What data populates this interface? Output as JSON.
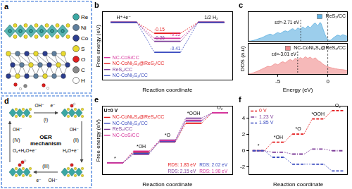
{
  "diagrams": [
    {
      "label": "a",
      "legend": [
        {
          "name": "Re",
          "color": "#3aa7a3"
        },
        {
          "name": "Ni",
          "color": "#5f7f9e"
        },
        {
          "name": "Co",
          "color": "#2c3e8f"
        },
        {
          "name": "S",
          "color": "#e8d92e"
        },
        {
          "name": "O",
          "color": "#e02020"
        },
        {
          "name": "C",
          "color": "#8a8a8a"
        },
        {
          "name": "H",
          "color": "#ffffff"
        }
      ]
    },
    {
      "label": "d",
      "title": "OER mechanism",
      "steps": [
        {
          "label": "(I)",
          "in": "OH⁻",
          "out": "e⁻"
        },
        {
          "label": "(II)",
          "in": "OH⁻",
          "out": "H₂O+e⁻"
        },
        {
          "label": "(III)",
          "in": "OH⁻",
          "out": "e⁻"
        },
        {
          "label": "(IV)",
          "in": "OH⁻",
          "out": "O₂+H₂O+e⁻"
        }
      ]
    }
  ],
  "chart_data": [
    {
      "type": "levels",
      "title": "b",
      "xlabel": "Reaction coordinate",
      "ylabel": "Free energy (eV)",
      "categories": [
        "H⁺+e⁻",
        null,
        "1/2 H₂"
      ],
      "series": [
        {
          "name": "NC-CoS/CC",
          "color": "#d6339b",
          "values": [
            0,
            -0.22,
            0
          ],
          "value_labels": [
            null,
            "-0.22",
            null
          ]
        },
        {
          "name": "NC-CoNi₂S₄@ReS₂/CC",
          "color": "#e41a1c",
          "values": [
            0,
            -0.15,
            0
          ],
          "value_labels": [
            null,
            "-0.15",
            null
          ]
        },
        {
          "name": "ReS₂/CC",
          "color": "#7d3c98",
          "values": [
            0,
            -0.26,
            0
          ],
          "value_labels": [
            null,
            "-0.26",
            null
          ]
        },
        {
          "name": "NC-CoNi₂S₄/CC",
          "color": "#3b4cc0",
          "values": [
            0,
            -0.41,
            0
          ],
          "value_labels": [
            null,
            "-0.41",
            null
          ]
        }
      ],
      "ylim": [
        -0.8,
        0.15
      ],
      "yticks": [],
      "tick_labels": false,
      "grid": false,
      "legend": "bottom-left",
      "data_labels": true
    },
    {
      "type": "area",
      "title": "c",
      "x": [
        -8,
        -7.75,
        -7.5,
        -7.25,
        -7,
        -6.75,
        -6.5,
        -6.25,
        -6,
        -5.75,
        -5.5,
        -5.25,
        -5,
        -4.75,
        -4.5,
        -4.25,
        -4,
        -3.75,
        -3.5,
        -3.25,
        -3,
        -2.75,
        -2.5,
        -2.25,
        -2,
        -1.75,
        -1.5,
        -1.25,
        -1,
        -0.75,
        -0.5,
        -0.25,
        0,
        0.25,
        0.5,
        0.75,
        1,
        1.25,
        1.5,
        1.75,
        2
      ],
      "series": [
        {
          "name": "ReS₂/CC",
          "color": "#5aaee0",
          "values": [
            0.2,
            0.3,
            0.5,
            0.8,
            1.2,
            1.6,
            2.0,
            2.6,
            3.1,
            3.5,
            3.0,
            3.6,
            4.2,
            3.8,
            4.5,
            5.0,
            4.6,
            5.4,
            6.0,
            5.2,
            6.3,
            5.8,
            6.8,
            6.0,
            7.2,
            6.5,
            7.8,
            8.6,
            7.4,
            8.9,
            6.2,
            3.0,
            1.0,
            0.6,
            1.5,
            2.4,
            3.0,
            2.6,
            3.2,
            2.8,
            2.5
          ]
        }
      ],
      "xlim": [
        -8,
        2
      ],
      "xticks": [
        -5,
        0
      ],
      "ylim": [
        0,
        14
      ],
      "yticks": [],
      "tick_labels": false,
      "grid": false,
      "legend": "top-right",
      "annotations": [
        {
          "text": "εd=-2.71 eV",
          "x": -2.71
        }
      ],
      "vlines": [
        0
      ]
    },
    {
      "type": "area",
      "xlabel": "Energy (eV)",
      "ylabel": "DOS (a.u)",
      "x": [
        -8,
        -7.75,
        -7.5,
        -7.25,
        -7,
        -6.75,
        -6.5,
        -6.25,
        -6,
        -5.75,
        -5.5,
        -5.25,
        -5,
        -4.75,
        -4.5,
        -4.25,
        -4,
        -3.75,
        -3.5,
        -3.25,
        -3,
        -2.75,
        -2.5,
        -2.25,
        -2,
        -1.75,
        -1.5,
        -1.25,
        -1,
        -0.75,
        -0.5,
        -0.25,
        0,
        0.25,
        0.5,
        0.75,
        1,
        1.25,
        1.5,
        1.75,
        2
      ],
      "series": [
        {
          "name": "NC-CoNi₂S₄@ReS₂/CC",
          "color": "#f08a8a",
          "values": [
            0.3,
            0.5,
            0.8,
            1.3,
            1.8,
            2.4,
            3.0,
            3.6,
            4.2,
            4.0,
            4.8,
            5.5,
            5.0,
            5.9,
            6.5,
            6.0,
            7.0,
            7.6,
            7.0,
            8.2,
            7.6,
            8.6,
            8.0,
            9.0,
            8.3,
            8.8,
            7.9,
            8.5,
            7.2,
            6.5,
            5.4,
            4.6,
            4.0,
            3.6,
            3.3,
            3.0,
            2.8,
            2.6,
            2.5,
            2.3,
            2.2
          ]
        }
      ],
      "xlim": [
        -8,
        2
      ],
      "xticks": [
        -5,
        0
      ],
      "ylim": [
        0,
        16
      ],
      "yticks": [],
      "tick_labels": "x",
      "grid": false,
      "legend": "top-right",
      "annotations": [
        {
          "text": "εd=-3.01 eV",
          "x": -3.01
        }
      ],
      "vlines": [
        0
      ]
    },
    {
      "type": "levels",
      "title": "e",
      "subtitle": "U=0 V",
      "xlabel": "Reaction coordinate",
      "ylabel": "Free energy (eV)",
      "categories": [
        "*",
        "*OH",
        "*O",
        "*OOH",
        "O₂"
      ],
      "series": [
        {
          "name": "NC-CoNi₂S₄@ReS₂/CC",
          "color": "#e41a1c",
          "values": [
            0,
            1.05,
            2.05,
            3.9,
            4.92
          ]
        },
        {
          "name": "NC-CoNi₂S₄/CC",
          "color": "#3b4cc0",
          "values": [
            0,
            0.95,
            2.1,
            4.12,
            4.92
          ]
        },
        {
          "name": "ReS₂/CC",
          "color": "#7d3c98",
          "values": [
            0,
            0.85,
            2.25,
            4.4,
            4.92
          ]
        },
        {
          "name": "NC-CoS/CC",
          "color": "#d6339b",
          "values": [
            0,
            1.15,
            2.2,
            4.18,
            4.92
          ]
        }
      ],
      "annotations": [
        {
          "text": "RDS: 1.85 eV",
          "color": "#e41a1c"
        },
        {
          "text": "RDS: 2.02 eV",
          "color": "#3b4cc0"
        },
        {
          "text": "RDS: 2.15 eV",
          "color": "#7d3c98"
        },
        {
          "text": "RDS: 1.98 eV",
          "color": "#d6339b"
        }
      ],
      "ylim": [
        -1.2,
        5.6
      ],
      "yticks": [],
      "tick_labels": false,
      "grid": false,
      "legend": "top-left"
    },
    {
      "type": "levels",
      "title": "f",
      "xlabel": "Reaction coordinate",
      "categories": [
        "*",
        "*OH",
        "*O",
        "*OOH",
        "O₂"
      ],
      "series": [
        {
          "name": "0 V",
          "color": "#e41a1c",
          "values": [
            0,
            1.05,
            2.05,
            3.9,
            4.92
          ],
          "line_style": "dashed"
        },
        {
          "name": "1.23 V",
          "color": "#7d3c98",
          "values": [
            0,
            -0.18,
            -0.41,
            0.21,
            0
          ],
          "line_style": "dashdot"
        },
        {
          "name": "1.85 V",
          "color": "#3b4cc0",
          "values": [
            0,
            -0.8,
            -1.65,
            -1.65,
            -2.48
          ],
          "line_style": "dashed"
        }
      ],
      "ylim": [
        -3,
        5.5
      ],
      "yticks": [
        -2,
        0,
        2,
        4
      ],
      "tick_labels": "y",
      "grid": false,
      "legend": "top-left"
    }
  ]
}
